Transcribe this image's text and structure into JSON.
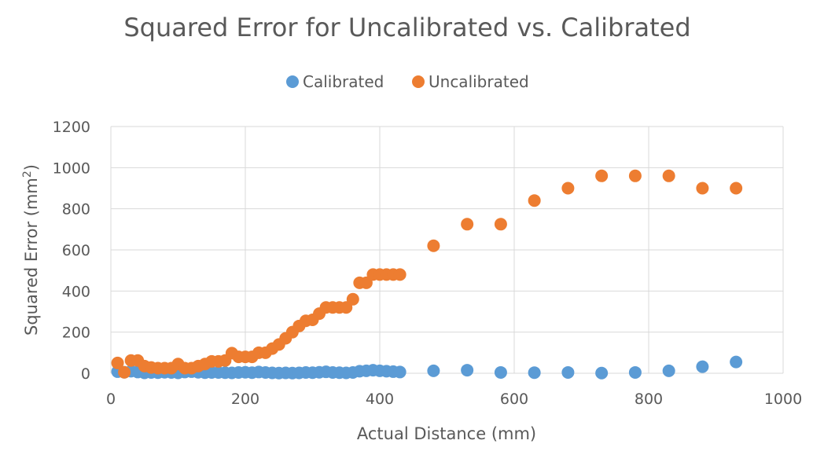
{
  "chart_data": {
    "type": "scatter",
    "title": "Squared Error for Uncalibrated vs. Calibrated",
    "xlabel": "Actual Distance (mm)",
    "ylabel_main": "Squared Error (mm",
    "ylabel_sup": "2",
    "ylabel_end": ")",
    "xlim": [
      0,
      1000
    ],
    "ylim": [
      0,
      1200
    ],
    "xticks": [
      "0",
      "200",
      "400",
      "600",
      "800",
      "1000"
    ],
    "yticks": [
      "0",
      "200",
      "400",
      "600",
      "800",
      "1000",
      "1200"
    ],
    "grid": true,
    "legend_position": "top",
    "series": [
      {
        "name": "Calibrated",
        "color": "#5B9BD5",
        "x": [
          10,
          20,
          30,
          40,
          50,
          60,
          70,
          80,
          90,
          100,
          110,
          120,
          130,
          140,
          150,
          160,
          170,
          180,
          190,
          200,
          210,
          220,
          230,
          240,
          250,
          260,
          270,
          280,
          290,
          300,
          310,
          320,
          330,
          340,
          350,
          360,
          370,
          380,
          390,
          400,
          410,
          420,
          430,
          480,
          530,
          580,
          630,
          680,
          730,
          780,
          830,
          880,
          930
        ],
        "y": [
          8,
          5,
          10,
          6,
          2,
          4,
          3,
          5,
          4,
          2,
          6,
          8,
          5,
          3,
          4,
          4,
          3,
          2,
          4,
          5,
          3,
          6,
          4,
          2,
          1,
          2,
          1,
          2,
          4,
          3,
          5,
          7,
          4,
          3,
          2,
          4,
          10,
          12,
          15,
          12,
          10,
          8,
          6,
          12,
          15,
          4,
          3,
          4,
          1,
          4,
          12,
          32,
          55
        ]
      },
      {
        "name": "Uncalibrated",
        "color": "#ED7D31",
        "x": [
          10,
          20,
          30,
          40,
          50,
          60,
          70,
          80,
          90,
          100,
          110,
          120,
          130,
          140,
          150,
          160,
          170,
          180,
          190,
          200,
          210,
          220,
          230,
          240,
          250,
          260,
          270,
          280,
          290,
          300,
          310,
          320,
          330,
          340,
          350,
          360,
          370,
          380,
          390,
          400,
          410,
          420,
          430,
          480,
          530,
          580,
          630,
          680,
          730,
          780,
          830,
          880,
          930
        ],
        "y": [
          50,
          5,
          62,
          62,
          35,
          28,
          25,
          25,
          25,
          45,
          25,
          25,
          35,
          45,
          58,
          58,
          62,
          98,
          80,
          80,
          80,
          100,
          100,
          120,
          140,
          170,
          200,
          230,
          255,
          260,
          290,
          320,
          320,
          320,
          320,
          360,
          440,
          440,
          480,
          480,
          480,
          480,
          480,
          620,
          725,
          725,
          840,
          900,
          960,
          960,
          960,
          900,
          900
        ]
      }
    ]
  }
}
